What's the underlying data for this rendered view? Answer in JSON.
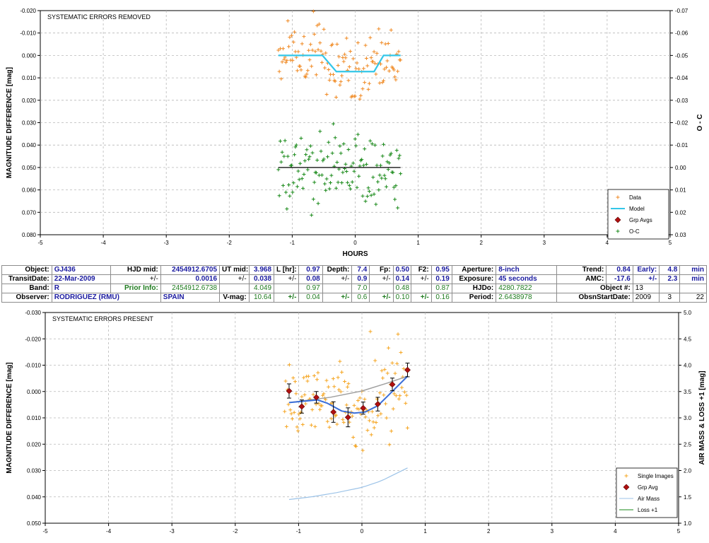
{
  "chart_data": [
    {
      "type": "scatter",
      "title": "SYSTEMATIC ERRORS REMOVED",
      "xlabel": "HOURS",
      "ylabel": "MAGNITUDE DIFFERENCE [mag]",
      "y2label": "O - C",
      "xlim": [
        -5,
        5
      ],
      "ylim": [
        0.08,
        -0.02
      ],
      "y2lim": [
        0.03,
        -0.07
      ],
      "x_ticks": [
        "-5",
        "-4",
        "-3",
        "-2",
        "-1",
        "0",
        "1",
        "2",
        "3",
        "4",
        "5"
      ],
      "y_ticks": [
        "-0.020",
        "-0.010",
        "0.000",
        "0.010",
        "0.020",
        "0.030",
        "0.040",
        "0.050",
        "0.060",
        "0.070",
        "0.080"
      ],
      "y2_ticks": [
        "-0.07",
        "-0.06",
        "-0.05",
        "-0.04",
        "-0.03",
        "-0.02",
        "-0.01",
        "0.00",
        "0.01",
        "0.02",
        "0.03"
      ],
      "grid": true,
      "legend_position": "bottom-right",
      "series": [
        {
          "name": "Data",
          "color": "#f08a24",
          "marker": "plus",
          "x_range": [
            -1.22,
            0.72
          ],
          "count": 130,
          "note_values": "cloud centered near 0.002 mag, spread -0.02 to 0.026"
        },
        {
          "name": "Model",
          "color": "#33c6e8",
          "type": "line",
          "x": [
            -1.22,
            -0.52,
            -0.3,
            0.3,
            0.45,
            0.72
          ],
          "y": [
            0.0,
            0.0,
            0.0072,
            0.0072,
            0.0,
            0.0
          ]
        },
        {
          "name": "Grp Avgs",
          "color": "#b01010",
          "marker": "diamond",
          "x": [],
          "y": []
        },
        {
          "name": "O-C",
          "color": "#1a8a1a",
          "marker": "plus",
          "x_range": [
            -1.22,
            0.72
          ],
          "count": 130,
          "baseline": 0.0,
          "spread": [
            -0.025,
            0.022
          ]
        }
      ]
    },
    {
      "type": "scatter",
      "title": "SYSTEMATIC ERRORS PRESENT",
      "xlabel": "",
      "ylabel": "MAGNITUDE DIFFERENCE [mag]",
      "y2label": "AIR MASS & LOSS +1 [mag]",
      "xlim": [
        -5,
        5
      ],
      "ylim": [
        0.05,
        -0.03
      ],
      "y2lim": [
        1.0,
        5.0
      ],
      "x_ticks": [
        "-5",
        "-4",
        "-3",
        "-2",
        "-1",
        "0",
        "1",
        "2",
        "3",
        "4",
        "5"
      ],
      "y_ticks": [
        "-0.030",
        "-0.020",
        "-0.010",
        "0.000",
        "0.010",
        "0.020",
        "0.030",
        "0.040",
        "0.050"
      ],
      "y2_ticks": [
        "5.0",
        "4.5",
        "4.0",
        "3.5",
        "3.0",
        "2.5",
        "2.0",
        "1.5",
        "1.0"
      ],
      "grid": true,
      "legend_position": "bottom-right",
      "series": [
        {
          "name": "Single Images",
          "color": "#f5a623",
          "marker": "plus",
          "x_range": [
            -1.22,
            0.72
          ],
          "count": 130
        },
        {
          "name": "Grp Avg",
          "color": "#b01010",
          "marker": "diamond",
          "x": [
            -1.15,
            -0.95,
            -0.72,
            -0.45,
            -0.22,
            0.02,
            0.25,
            0.48,
            0.72
          ],
          "y": [
            -0.0002,
            0.0057,
            0.0022,
            0.0078,
            0.0098,
            0.0063,
            0.0048,
            -0.0027,
            -0.0082
          ],
          "err": [
            0.0027,
            0.0025,
            0.0022,
            0.0039,
            0.0036,
            0.0023,
            0.0026,
            0.0024,
            0.0026
          ]
        },
        {
          "name": "Model",
          "color": "#3a6ed8",
          "type": "line",
          "x": [
            -1.15,
            -0.7,
            -0.55,
            -0.32,
            -0.12,
            0.05,
            0.25,
            0.42,
            0.72
          ],
          "y": [
            0.0042,
            0.0032,
            0.0044,
            0.0074,
            0.0082,
            0.0078,
            0.0054,
            0.0014,
            -0.0058
          ]
        },
        {
          "name": "",
          "color": "#a0a0a0",
          "type": "line",
          "x": [
            -1.15,
            -0.5,
            0.0,
            0.4,
            0.72
          ],
          "y": [
            0.0042,
            0.0022,
            -0.0002,
            -0.0032,
            -0.0058
          ]
        },
        {
          "name": "Air Mass",
          "color": "#9cc3e8",
          "type": "line",
          "axis": "y2",
          "x": [
            -1.15,
            -0.8,
            -0.4,
            0.0,
            0.3,
            0.72
          ],
          "y": [
            1.45,
            1.5,
            1.58,
            1.68,
            1.8,
            2.05
          ]
        },
        {
          "name": "Loss +1",
          "color": "#1a8a1a",
          "type": "line",
          "axis": "y2",
          "x": [],
          "y": []
        }
      ]
    }
  ],
  "info": {
    "row1": {
      "object_label": "Object:",
      "object": "GJ436",
      "hjd_mid_label": "HJD mid:",
      "hjd_mid": "2454912.6705",
      "ut_mid_label": "UT mid:",
      "ut_mid": "3.968",
      "l_hr_label": "L [hr]:",
      "l_hr": "0.97",
      "depth_label": "Depth:",
      "depth": "7.4",
      "fp_label": "Fp:",
      "fp": "0.50",
      "f2_label": "F2:",
      "f2": "0.95",
      "aperture_label": "Aperture:",
      "aperture": "8-inch",
      "trend_label": "Trend:",
      "trend": "0.84",
      "early_label": "Early:",
      "early": "4.8",
      "early_unit": "min"
    },
    "row2": {
      "transit_label": "TransitDate:",
      "transit": "22-Mar-2009",
      "pm1": "+/-",
      "hjd_err": "0.0016",
      "pm2": "+/-",
      "ut_err": "0.038",
      "pm3": "+/-",
      "l_err": "0.08",
      "pm4": "+/-",
      "depth_err": "0.9",
      "pm5": "+/-",
      "fp_err": "0.14",
      "pm6": "+/-",
      "f2_err": "0.19",
      "exposure_label": "Exposure:",
      "exposure": "45 seconds",
      "amc_label": "AMC:",
      "amc": "-17.6",
      "pm7": "+/-",
      "early_err": "2.3",
      "early_err_unit": "min"
    },
    "row3": {
      "band_label": "Band:",
      "band": "R",
      "prior_label": "Prior Info:",
      "prior_hjd": "2454912.6738",
      "prior_ut": "4.049",
      "prior_l": "0.97",
      "prior_depth": "7.0",
      "prior_fp": "0.48",
      "prior_f2": "0.87",
      "hjdo_label": "HJDo:",
      "hjdo": "4280.7822",
      "objnum_label": "Object #:",
      "objnum": "13"
    },
    "row4": {
      "observer_label": "Observer:",
      "observer": "RODRIGUEZ (RMU)",
      "country": "SPAIN",
      "vmag_label": "V-mag:",
      "vmag": "10.64",
      "pm1": "+/-",
      "vmag_err": "0.04",
      "pm2": "+/-",
      "v2_err": "0.6",
      "pm3": "+/-",
      "v3_err": "0.10",
      "pm4": "+/-",
      "v4_err": "0.16",
      "period_label": "Period:",
      "period": "2.6438978",
      "obsstart_label": "ObsnStartDate:",
      "obs_year": "2009",
      "obs_month": "3",
      "obs_day": "22"
    }
  }
}
